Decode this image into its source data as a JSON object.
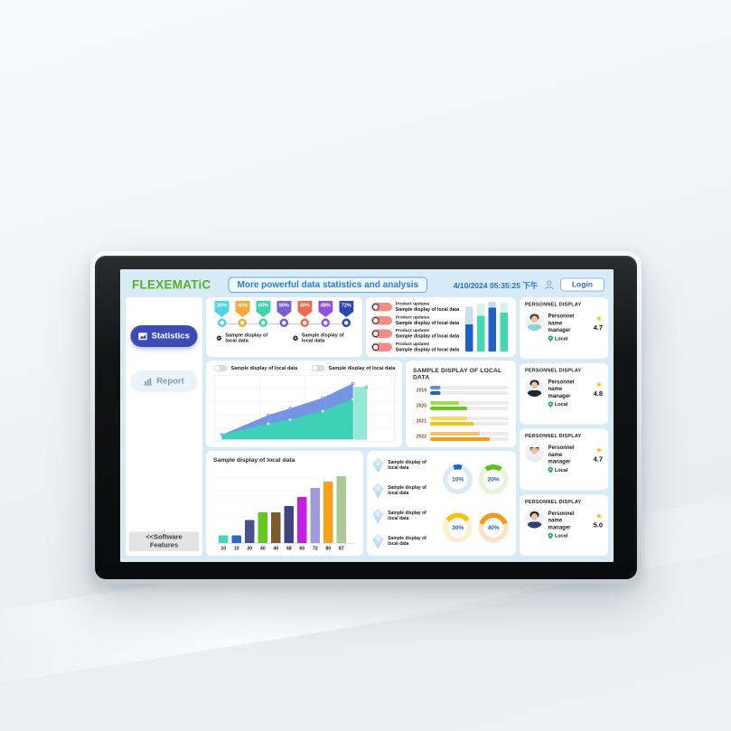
{
  "header": {
    "logo": "FLEXEMATiC",
    "title": "More powerful data statistics and analysis",
    "datetime": "4/10/2024 05:35:25 下午",
    "login_label": "Login"
  },
  "sidebar": {
    "statistics_label": "Statistics",
    "report_label": "Report",
    "software_features": "<<Software\nFeatures"
  },
  "ribbon_panel": {
    "ribbons": [
      {
        "value": "30%",
        "color": "#4fd4e4"
      },
      {
        "value": "40%",
        "color": "#f6a83a"
      },
      {
        "value": "60%",
        "color": "#3fd3ae"
      },
      {
        "value": "80%",
        "color": "#7a5bd6"
      },
      {
        "value": "40%",
        "color": "#ec6a50"
      },
      {
        "value": "48%",
        "color": "#9051e0"
      },
      {
        "value": "72%",
        "color": "#2a46b0"
      }
    ],
    "gear_items": [
      "Sample display of local data",
      "Sample display of local data"
    ]
  },
  "updates_panel": {
    "items": [
      {
        "title": "Product updates",
        "subtitle": "Sample display of local data"
      },
      {
        "title": "Product updates",
        "subtitle": "Sample display of local data"
      },
      {
        "title": "Product updates",
        "subtitle": "Sample display of local data"
      },
      {
        "title": "Product updates",
        "subtitle": "Sample display of local data"
      }
    ],
    "chart": {
      "blue": "#1e62c8",
      "blue_tint": "#c9def5",
      "teal": "#45d6b2",
      "teal_tint": "#d6f4ea",
      "bars": [
        {
          "base": 55,
          "total": 90,
          "scheme": "blue"
        },
        {
          "base": 72,
          "total": 96,
          "scheme": "teal"
        },
        {
          "base": 88,
          "total": 100,
          "scheme": "blue"
        },
        {
          "base": 78,
          "total": 98,
          "scheme": "teal"
        }
      ]
    }
  },
  "area_panel": {
    "toggles": [
      "Sample display of local data",
      "Sample display of local data"
    ],
    "chart": {
      "x": [
        4,
        30,
        42,
        60,
        77
      ],
      "blue": [
        10,
        40,
        50,
        66,
        88
      ],
      "teal": [
        10,
        27,
        33,
        46,
        64
      ],
      "endbar": {
        "x": 77.5,
        "w": 7,
        "h": 82
      },
      "blue_color": "#7693e4",
      "teal_color": "#3fd1b8",
      "endbar_color": "#8ae8d2"
    }
  },
  "hbar_panel": {
    "title": "SAMPLE DISPLAY OF LOCAL DATA",
    "rows": [
      {
        "year": "2019",
        "v1": 13,
        "v2": 13,
        "c1": "#5b8fe0",
        "c2": "#2363c8"
      },
      {
        "year": "2020",
        "v1": 37,
        "v2": 47,
        "c1": "#9ade4e",
        "c2": "#6cc41e"
      },
      {
        "year": "2021",
        "v1": 47,
        "v2": 56,
        "c1": "#f8d863",
        "c2": "#f4c414"
      },
      {
        "year": "2022",
        "v1": 63,
        "v2": 76,
        "c1": "#f8bc6e",
        "c2": "#f49a1c"
      }
    ]
  },
  "bar_panel": {
    "title": "Sample display of local data",
    "bars": [
      {
        "value": 10,
        "color": "#3fd9c0"
      },
      {
        "value": 10,
        "color": "#2a6bd0"
      },
      {
        "value": 30,
        "color": "#4a4f8c"
      },
      {
        "value": 40,
        "color": "#63c81e"
      },
      {
        "value": 40,
        "color": "#7c5a2c"
      },
      {
        "value": 48,
        "color": "#3f4480"
      },
      {
        "value": 60,
        "color": "#c41ee0"
      },
      {
        "value": 72,
        "color": "#a09ad8"
      },
      {
        "value": 80,
        "color": "#f6a11e"
      },
      {
        "value": 87,
        "color": "#a9c895"
      }
    ]
  },
  "donut_panel": {
    "diamonds": [
      {
        "number": "1",
        "label": "Sample display of local data"
      },
      {
        "number": "2",
        "label": "Sample display of local data"
      },
      {
        "number": "3",
        "label": "Sample display of local data"
      },
      {
        "number": "4",
        "label": "Sample display of local data"
      }
    ],
    "donuts": [
      {
        "pct": 10,
        "label": "10%",
        "color": "#1e62c8",
        "track": "#dbe9f8"
      },
      {
        "pct": 20,
        "label": "20%",
        "color": "#58c41e",
        "track": "#e4f6da"
      },
      {
        "pct": 30,
        "label": "30%",
        "color": "#f4c414",
        "track": "#fbf0cd"
      },
      {
        "pct": 40,
        "label": "40%",
        "color": "#f49a1c",
        "track": "#fbe4c6"
      }
    ]
  },
  "personnel_panel": {
    "cards": [
      {
        "title": "PERSONNEL DISPLAY",
        "name": "Personnel name",
        "role": "manager",
        "location": "Local",
        "rating": "4.7",
        "avatar": "doctor"
      },
      {
        "title": "PERSONNEL DISPLAY",
        "name": "Personnel name",
        "role": "manager",
        "location": "Local",
        "rating": "4.8",
        "avatar": "suit"
      },
      {
        "title": "PERSONNEL DISPLAY",
        "name": "Personnel name",
        "role": "manager",
        "location": "Local",
        "rating": "4.7",
        "avatar": "pilot"
      },
      {
        "title": "PERSONNEL DISPLAY",
        "name": "Personnel name",
        "role": "manager",
        "location": "Local",
        "rating": "5.0",
        "avatar": "navy"
      }
    ]
  }
}
